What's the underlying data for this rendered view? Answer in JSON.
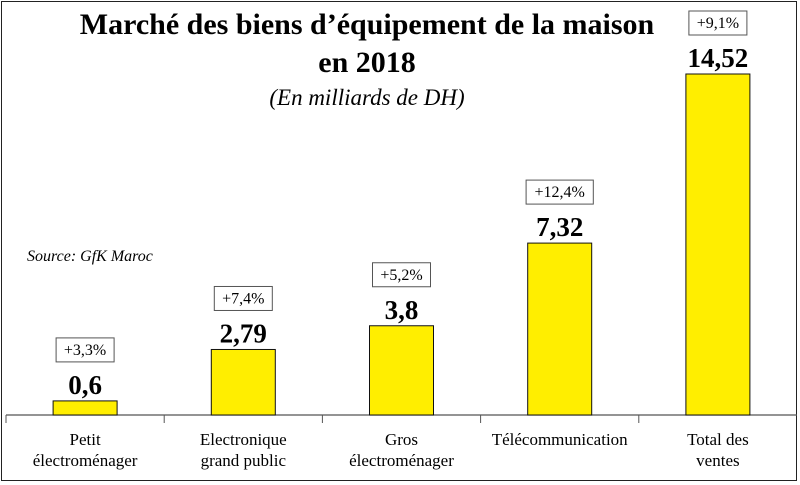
{
  "title_line1": "Marché des biens d’équipement de la maison",
  "title_line2": "en 2018",
  "subtitle": "(En milliards de DH)",
  "source": "Source: GfK Maroc",
  "colors": {
    "bar": "#ffee00",
    "bar_stroke": "#111111",
    "axis": "#555555"
  },
  "chart_data": {
    "type": "bar",
    "title": "Marché des biens d’équipement de la maison en 2018",
    "subtitle": "(En milliards de DH)",
    "categories": [
      [
        "Petit",
        "électroménager"
      ],
      [
        "Electronique",
        "grand public"
      ],
      [
        "Gros",
        "électroménager"
      ],
      [
        "Télécommunication"
      ],
      [
        "Total des",
        "ventes"
      ]
    ],
    "values": [
      0.6,
      2.79,
      3.8,
      7.32,
      14.52
    ],
    "value_labels": [
      "0,6",
      "2,79",
      "3,8",
      "7,32",
      "14,52"
    ],
    "growth_labels": [
      "+3,3%",
      "+7,4%",
      "+5,2%",
      "+12,4%",
      "+9,1%"
    ],
    "ylim": [
      0,
      16
    ],
    "grid": false,
    "legend": "none"
  }
}
